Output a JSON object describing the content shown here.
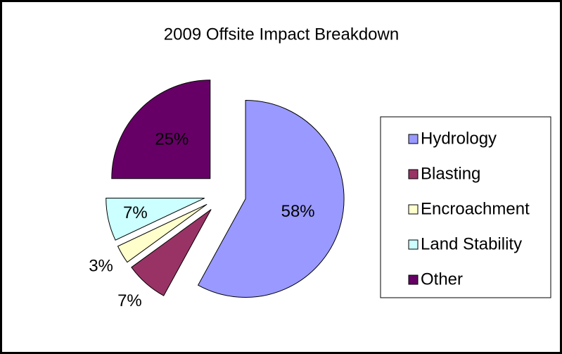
{
  "chart_data": {
    "type": "pie",
    "title": "2009 Offsite Impact Breakdown",
    "categories": [
      "Hydrology",
      "Blasting",
      "Encroachment",
      "Land Stability",
      "Other"
    ],
    "values": [
      58,
      7,
      3,
      7,
      25
    ],
    "value_labels": [
      "58%",
      "7%",
      "3%",
      "7%",
      "25%"
    ],
    "colors": [
      "#9999ff",
      "#993366",
      "#ffffcc",
      "#ccffff",
      "#660066"
    ],
    "legend": "right"
  }
}
